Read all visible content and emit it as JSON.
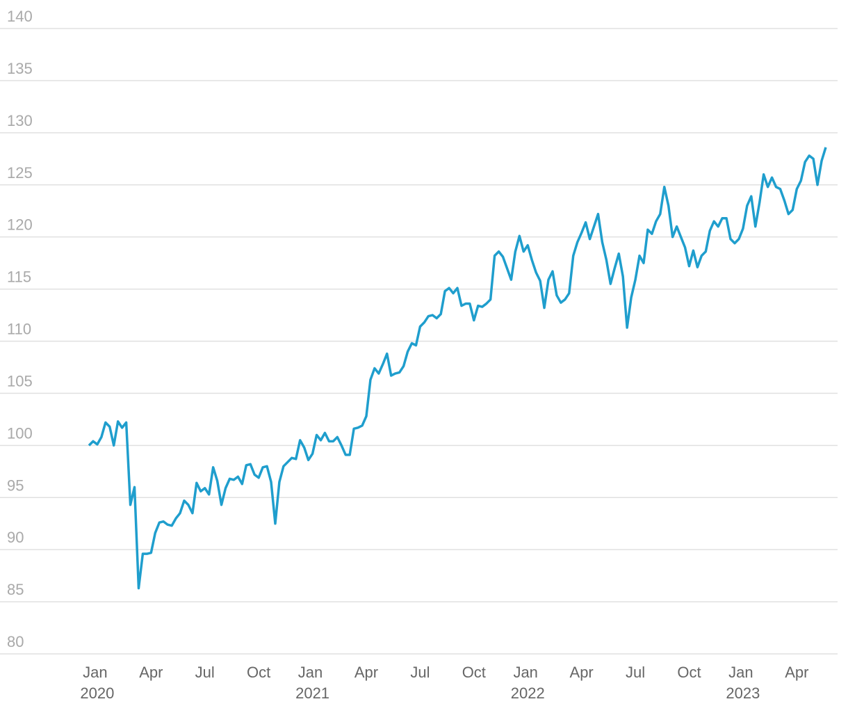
{
  "chart_data": {
    "type": "line",
    "categories": [
      null,
      null,
      "Jan 2020",
      null,
      null,
      null,
      null,
      null,
      null,
      null,
      null,
      null,
      null,
      null,
      null,
      "Apr",
      null,
      null,
      null,
      null,
      null,
      null,
      null,
      null,
      null,
      null,
      null,
      null,
      "Jul",
      null,
      null,
      null,
      null,
      null,
      null,
      null,
      null,
      null,
      null,
      null,
      null,
      "Oct",
      null,
      null,
      null,
      null,
      null,
      null,
      null,
      null,
      null,
      null,
      null,
      null,
      "Jan 2021",
      null,
      null,
      null,
      null,
      null,
      null,
      null,
      null,
      null,
      null,
      null,
      null,
      "Apr",
      null,
      null,
      null,
      null,
      null,
      null,
      null,
      null,
      null,
      null,
      null,
      null,
      "Jul",
      null,
      null,
      null,
      null,
      null,
      null,
      null,
      null,
      null,
      null,
      null,
      null,
      "Oct",
      null,
      null,
      null,
      null,
      null,
      null,
      null,
      null,
      null,
      null,
      null,
      null,
      "Jan 2022",
      null,
      null,
      null,
      null,
      null,
      null,
      null,
      null,
      null,
      null,
      null,
      null,
      "Apr",
      null,
      null,
      null,
      null,
      null,
      null,
      null,
      null,
      null,
      null,
      null,
      null,
      "Jul",
      null,
      null,
      null,
      null,
      null,
      null,
      null,
      null,
      null,
      null,
      null,
      null,
      "Oct",
      null,
      null,
      null,
      null,
      null,
      null,
      null,
      null,
      null,
      null,
      null,
      null,
      "Jan 2023",
      null,
      null,
      null,
      null,
      null,
      null,
      null,
      null,
      null,
      null,
      null,
      null,
      "Apr",
      null,
      null,
      null,
      null,
      null,
      null,
      null
    ],
    "series": [
      {
        "color": "#1f9ecd",
        "values": [
          100.0,
          100.4,
          100.1,
          100.8,
          102.2,
          101.8,
          100.0,
          102.3,
          101.7,
          102.2,
          94.3,
          96.0,
          86.3,
          89.6,
          89.6,
          89.7,
          91.6,
          92.6,
          92.7,
          92.4,
          92.3,
          93.0,
          93.5,
          94.7,
          94.3,
          93.5,
          96.4,
          95.6,
          95.9,
          95.3,
          97.9,
          96.6,
          94.3,
          95.9,
          96.8,
          96.7,
          97.0,
          96.3,
          98.1,
          98.2,
          97.2,
          96.9,
          97.9,
          98.0,
          96.5,
          92.5,
          96.5,
          98.0,
          98.4,
          98.8,
          98.7,
          100.5,
          99.8,
          98.6,
          99.2,
          101.0,
          100.5,
          101.2,
          100.4,
          100.4,
          100.8,
          100.0,
          99.1,
          99.1,
          101.6,
          101.7,
          101.9,
          102.8,
          106.3,
          107.4,
          106.9,
          107.8,
          108.8,
          106.7,
          106.9,
          107.0,
          107.6,
          109.0,
          109.8,
          109.6,
          111.4,
          111.8,
          112.4,
          112.5,
          112.2,
          112.6,
          114.8,
          115.1,
          114.6,
          115.1,
          113.4,
          113.6,
          113.6,
          112.0,
          113.4,
          113.3,
          113.6,
          114.0,
          118.2,
          118.6,
          118.1,
          117.0,
          115.9,
          118.6,
          120.1,
          118.6,
          119.2,
          117.8,
          116.6,
          115.8,
          113.2,
          115.9,
          116.7,
          114.4,
          113.7,
          114.0,
          114.6,
          118.2,
          119.5,
          120.4,
          121.4,
          119.8,
          121.0,
          122.2,
          119.5,
          117.8,
          115.5,
          117.0,
          118.4,
          116.2,
          111.3,
          114.2,
          115.9,
          118.2,
          117.5,
          120.7,
          120.3,
          121.5,
          122.2,
          124.8,
          123.0,
          120.0,
          121.0,
          120.0,
          119.0,
          117.2,
          118.7,
          117.1,
          118.2,
          118.6,
          120.6,
          121.5,
          121.0,
          121.8,
          121.8,
          119.8,
          119.4,
          119.8,
          120.8,
          123.0,
          123.9,
          121.0,
          123.3,
          126.0,
          124.8,
          125.7,
          124.8,
          124.6,
          123.5,
          122.2,
          122.6,
          124.6,
          125.4,
          127.2,
          127.8,
          127.5,
          125.0,
          127.3,
          128.6
        ]
      }
    ],
    "ylim": [
      80,
      140
    ],
    "yticks": [
      80,
      85,
      90,
      95,
      100,
      105,
      110,
      115,
      120,
      125,
      130,
      135,
      140
    ],
    "grid": true
  }
}
